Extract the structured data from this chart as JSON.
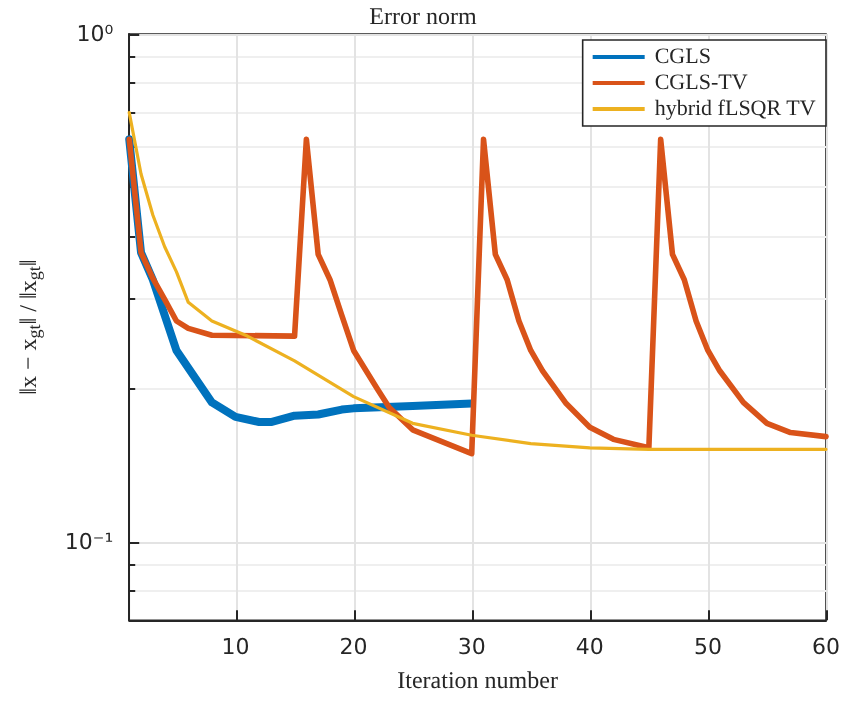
{
  "chart_data": {
    "type": "line",
    "title": "Error norm",
    "xlabel": "Iteration number",
    "ylabel": "‖x − x$_{gt}$‖ / ‖x$_{gt}$‖",
    "xlim": [
      1,
      60
    ],
    "xticks": [
      10,
      20,
      30,
      40,
      50,
      60
    ],
    "ylim": [
      0.07,
      1
    ],
    "yticks": [
      {
        "value": 0.1,
        "label": "10⁻¹"
      },
      {
        "value": 1,
        "label": "10⁰"
      }
    ],
    "log": "y",
    "grid": true,
    "legend": "top right",
    "marker": "none",
    "line_style": "solid",
    "series": [
      {
        "name": "CGLS",
        "color": "#0072bd",
        "x": [
          1,
          2,
          3,
          5,
          8,
          10,
          12,
          13,
          15,
          17,
          19,
          20,
          25,
          30
        ],
        "values": [
          0.62,
          0.371,
          0.328,
          0.238,
          0.188,
          0.176,
          0.172,
          0.172,
          0.177,
          0.178,
          0.182,
          0.183,
          0.185,
          0.187
        ]
      },
      {
        "name": "CGLS-TV",
        "color": "#d95319",
        "x": [
          1,
          2,
          3,
          4,
          5,
          6,
          8,
          15,
          16,
          17,
          18,
          19,
          20,
          22,
          23,
          25,
          30,
          31,
          32,
          33,
          34,
          35,
          36,
          38,
          40,
          42,
          45,
          46,
          47,
          48,
          49,
          50,
          51,
          53,
          55,
          57,
          60
        ],
        "values": [
          0.62,
          0.371,
          0.33,
          0.3,
          0.272,
          0.263,
          0.255,
          0.254,
          0.62,
          0.368,
          0.328,
          0.279,
          0.238,
          0.2,
          0.184,
          0.166,
          0.149,
          0.62,
          0.368,
          0.328,
          0.272,
          0.238,
          0.217,
          0.187,
          0.168,
          0.159,
          0.153,
          0.62,
          0.368,
          0.328,
          0.272,
          0.238,
          0.217,
          0.188,
          0.171,
          0.164,
          0.161
        ]
      },
      {
        "name": "hybrid fLSQR TV",
        "color": "#edb120",
        "x": [
          1,
          2,
          3,
          4,
          5,
          6,
          8,
          11,
          15,
          20,
          25,
          30,
          35,
          40,
          45,
          60
        ],
        "values": [
          0.7,
          0.53,
          0.44,
          0.381,
          0.34,
          0.296,
          0.272,
          0.254,
          0.227,
          0.193,
          0.171,
          0.162,
          0.156,
          0.153,
          0.152,
          0.152
        ]
      }
    ]
  }
}
